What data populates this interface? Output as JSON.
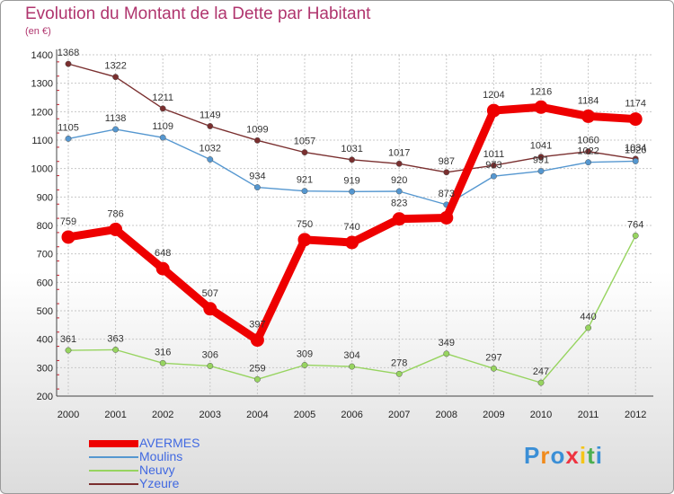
{
  "title": "Evolution du Montant de la Dette par Habitant",
  "unit": "(en €)",
  "logo": "Proxiti",
  "colors": {
    "title": "#b0356e",
    "grid": "#c8c8c8",
    "axis": "#444444",
    "tick_mark": "#d01c2c"
  },
  "chart_data": {
    "type": "line",
    "title": "Evolution du Montant de la Dette par Habitant",
    "ylabel": "(en €)",
    "xlabel": "",
    "categories": [
      "2000",
      "2001",
      "2002",
      "2003",
      "2004",
      "2005",
      "2006",
      "2007",
      "2008",
      "2009",
      "2010",
      "2011",
      "2012"
    ],
    "ylim": [
      200,
      1400
    ],
    "yticks": [
      200,
      300,
      400,
      500,
      600,
      700,
      800,
      900,
      1000,
      1100,
      1200,
      1300,
      1400
    ],
    "grid": true,
    "legend_position": "bottom-left",
    "series": [
      {
        "name": "AVERMES",
        "color": "#ee0000",
        "values": [
          759,
          786,
          648,
          507,
          397,
          750,
          740,
          823,
          827,
          1204,
          1216,
          1184,
          1174
        ],
        "labels": [
          "759",
          "786",
          "648",
          "507",
          "397",
          "750",
          "740",
          "823",
          "",
          "1204",
          "1216",
          "1184",
          "1174"
        ]
      },
      {
        "name": "Moulins",
        "color": "#5597d0",
        "values": [
          1105,
          1138,
          1109,
          1032,
          934,
          921,
          919,
          920,
          873,
          973,
          991,
          1022,
          1026
        ],
        "labels": [
          "1105",
          "1138",
          "1109",
          "1032",
          "934",
          "921",
          "919",
          "920",
          "873",
          "973",
          "991",
          "1022",
          "1026"
        ]
      },
      {
        "name": "Neuvy",
        "color": "#97d460",
        "values": [
          361,
          363,
          316,
          306,
          259,
          309,
          304,
          278,
          349,
          297,
          247,
          440,
          764
        ],
        "labels": [
          "361",
          "363",
          "316",
          "306",
          "259",
          "309",
          "304",
          "278",
          "349",
          "297",
          "247",
          "440",
          "764"
        ]
      },
      {
        "name": "Yzeure",
        "color": "#7a2f2f",
        "values": [
          1368,
          1322,
          1211,
          1149,
          1099,
          1057,
          1031,
          1017,
          987,
          1011,
          1041,
          1060,
          1034
        ],
        "labels": [
          "1368",
          "1322",
          "1211",
          "1149",
          "1099",
          "1057",
          "1031",
          "1017",
          "987",
          "1011",
          "1041",
          "1060",
          "1034"
        ]
      }
    ]
  }
}
